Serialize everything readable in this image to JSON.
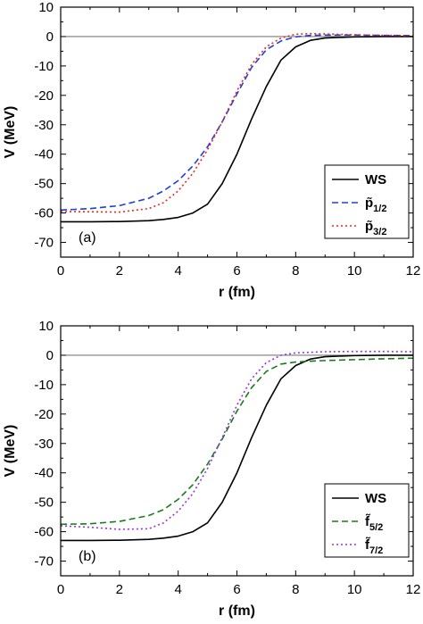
{
  "chart_data": [
    {
      "type": "line",
      "panel_label": "(a)",
      "xlabel": "r (fm)",
      "ylabel": "V (MeV)",
      "xlim": [
        0,
        12
      ],
      "ylim": [
        -75,
        10
      ],
      "xticks": [
        0,
        2,
        4,
        6,
        8,
        10,
        12
      ],
      "yticks": [
        10,
        0,
        -10,
        -20,
        -30,
        -40,
        -50,
        -60,
        -70
      ],
      "grid": false,
      "legend_position": "lower-right",
      "reference_line": {
        "y": 0,
        "color": "#555555"
      },
      "series": [
        {
          "name": "WS",
          "label_main": "WS",
          "label_sub": "",
          "color": "#000000",
          "dash": "solid",
          "x": [
            0,
            1,
            2,
            3,
            3.5,
            4,
            4.5,
            5,
            5.5,
            6,
            6.5,
            7,
            7.5,
            8,
            8.5,
            9,
            10,
            11,
            12
          ],
          "y": [
            -63,
            -63,
            -62.9,
            -62.6,
            -62.2,
            -61.5,
            -60,
            -57,
            -50,
            -40,
            -28,
            -17,
            -8,
            -3.5,
            -1.3,
            -0.5,
            -0.1,
            0,
            0
          ]
        },
        {
          "name": "p̃1/2",
          "label_main": "p̃",
          "label_sub": "1/2",
          "color": "#1f3fd6",
          "dash": "7,4",
          "x": [
            0,
            1,
            2,
            3,
            3.5,
            4,
            4.5,
            5,
            5.5,
            6,
            6.5,
            7,
            7.5,
            8,
            8.5,
            9,
            10,
            11,
            12
          ],
          "y": [
            -59,
            -58.5,
            -57.5,
            -55,
            -52.5,
            -49,
            -44,
            -37.5,
            -29,
            -19.5,
            -10.5,
            -4.5,
            -1.5,
            -0.1,
            0.4,
            0.5,
            0.5,
            0.4,
            0.3
          ]
        },
        {
          "name": "p̃3/2",
          "label_main": "p̃",
          "label_sub": "3/2",
          "color": "#e8261a",
          "dash": "2,3",
          "x": [
            0,
            1,
            2,
            3,
            3.5,
            4,
            4.5,
            5,
            5.5,
            6,
            6.5,
            7,
            7.5,
            8,
            8.5,
            9,
            10,
            11,
            12
          ],
          "y": [
            -59.5,
            -59.6,
            -59.7,
            -58.5,
            -56.5,
            -52.5,
            -46.5,
            -38.5,
            -29,
            -18.5,
            -9.5,
            -3.5,
            -0.5,
            0.8,
            1,
            0.9,
            0.6,
            0.4,
            0.3
          ]
        }
      ]
    },
    {
      "type": "line",
      "panel_label": "(b)",
      "xlabel": "r (fm)",
      "ylabel": "V (MeV)",
      "xlim": [
        0,
        12
      ],
      "ylim": [
        -75,
        10
      ],
      "xticks": [
        0,
        2,
        4,
        6,
        8,
        10,
        12
      ],
      "yticks": [
        10,
        0,
        -10,
        -20,
        -30,
        -40,
        -50,
        -60,
        -70
      ],
      "grid": false,
      "legend_position": "lower-right",
      "reference_line": {
        "y": 0,
        "color": "#555555"
      },
      "series": [
        {
          "name": "WS",
          "label_main": "WS",
          "label_sub": "",
          "color": "#000000",
          "dash": "solid",
          "x": [
            0,
            1,
            2,
            3,
            3.5,
            4,
            4.5,
            5,
            5.5,
            6,
            6.5,
            7,
            7.5,
            8,
            8.5,
            9,
            10,
            11,
            12
          ],
          "y": [
            -63,
            -63,
            -62.9,
            -62.6,
            -62.2,
            -61.5,
            -60,
            -57,
            -50,
            -40,
            -28,
            -17,
            -8,
            -3.5,
            -1.3,
            -0.5,
            -0.1,
            0,
            0
          ]
        },
        {
          "name": "f̃5/2",
          "label_main": "f̃",
          "label_sub": "5/2",
          "color": "#1a7a1a",
          "dash": "7,4",
          "x": [
            0,
            1,
            2,
            3,
            3.5,
            4,
            4.5,
            5,
            5.5,
            6,
            6.5,
            7,
            7.5,
            8,
            8.5,
            9,
            10,
            11,
            12
          ],
          "y": [
            -57.5,
            -57.3,
            -56.5,
            -54.5,
            -52.5,
            -49,
            -44,
            -37,
            -28.5,
            -19,
            -11,
            -5.5,
            -3,
            -2.3,
            -2,
            -1.8,
            -1.5,
            -1.2,
            -1
          ]
        },
        {
          "name": "f̃7/2",
          "label_main": "f̃",
          "label_sub": "7/2",
          "color": "#9b30e0",
          "dash": "2,3",
          "x": [
            0,
            1,
            2,
            3,
            3.5,
            4,
            4.5,
            5,
            5.5,
            6,
            6.5,
            7,
            7.5,
            8,
            8.5,
            9,
            10,
            11,
            12
          ],
          "y": [
            -58,
            -58.5,
            -59.2,
            -59,
            -57,
            -53,
            -47,
            -38.5,
            -28,
            -17,
            -8,
            -2.5,
            0,
            0.8,
            1,
            1.2,
            1.3,
            1.3,
            1.2
          ]
        }
      ]
    }
  ]
}
